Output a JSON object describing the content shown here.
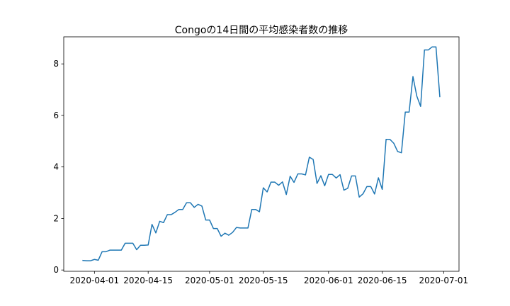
{
  "chart_data": {
    "type": "line",
    "title": "Congoの14日間の平均感染者数の推移",
    "xlabel": "",
    "ylabel": "",
    "x_start": "2020-03-29",
    "x_end": "2020-06-30",
    "xlim": [
      "2020-03-24",
      "2020-07-05"
    ],
    "ylim": [
      -0.05,
      9.05
    ],
    "x_ticks": [
      "2020-04-01",
      "2020-04-15",
      "2020-05-01",
      "2020-05-15",
      "2020-06-01",
      "2020-06-15",
      "2020-07-01"
    ],
    "y_ticks": [
      0,
      2,
      4,
      6,
      8
    ],
    "grid": false,
    "series": [
      {
        "color": "#1f77b4",
        "values": [
          0.37,
          0.36,
          0.36,
          0.41,
          0.38,
          0.71,
          0.71,
          0.77,
          0.77,
          0.77,
          0.77,
          1.04,
          1.04,
          1.04,
          0.79,
          0.96,
          0.96,
          0.97,
          1.77,
          1.44,
          1.89,
          1.84,
          2.15,
          2.15,
          2.24,
          2.35,
          2.35,
          2.61,
          2.61,
          2.43,
          2.55,
          2.48,
          1.94,
          1.94,
          1.61,
          1.61,
          1.31,
          1.43,
          1.35,
          1.46,
          1.65,
          1.63,
          1.63,
          1.63,
          2.35,
          2.35,
          2.26,
          3.19,
          3.03,
          3.41,
          3.41,
          3.29,
          3.42,
          2.93,
          3.64,
          3.4,
          3.73,
          3.73,
          3.69,
          4.38,
          4.29,
          3.36,
          3.66,
          3.27,
          3.71,
          3.71,
          3.57,
          3.7,
          3.1,
          3.17,
          3.65,
          3.65,
          2.83,
          2.96,
          3.24,
          3.24,
          2.95,
          3.58,
          3.13,
          5.07,
          5.07,
          4.92,
          4.6,
          4.55,
          6.13,
          6.13,
          7.51,
          6.75,
          6.35,
          8.54,
          8.54,
          8.66,
          8.66,
          6.73
        ]
      }
    ]
  }
}
